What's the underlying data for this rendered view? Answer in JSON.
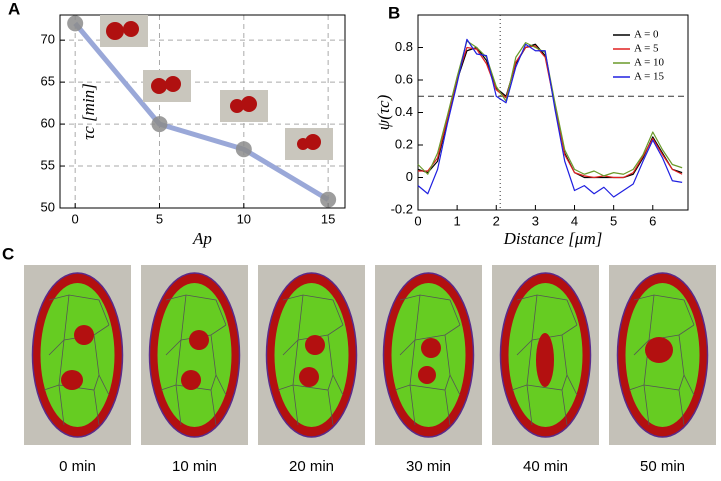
{
  "chart_data": [
    {
      "type": "line",
      "panel": "A",
      "xlabel": "Ap",
      "ylabel": "τc [min]",
      "x": [
        0,
        5,
        10,
        15
      ],
      "values": [
        72,
        60,
        57,
        51
      ],
      "color": "#9aa8d8",
      "marker_color": "#8c8c8c",
      "xlim": [
        -0.9,
        16
      ],
      "ylim": [
        50,
        73
      ],
      "xticks": [
        0,
        5,
        10,
        15
      ],
      "yticks": [
        50,
        55,
        60,
        65,
        70
      ],
      "grid": true
    },
    {
      "type": "line",
      "panel": "B",
      "xlabel": "Distance [μm]",
      "ylabel": "ψ(τc)",
      "x": [
        0,
        0.25,
        0.5,
        0.75,
        1,
        1.25,
        1.5,
        1.75,
        2,
        2.25,
        2.5,
        2.75,
        3,
        3.25,
        3.5,
        3.75,
        4,
        4.25,
        4.5,
        4.75,
        5,
        5.25,
        5.5,
        5.75,
        6,
        6.25,
        6.5,
        6.75
      ],
      "series": [
        {
          "name": "A = 0",
          "color": "#000000",
          "values": [
            0.05,
            0.03,
            0.1,
            0.35,
            0.6,
            0.78,
            0.8,
            0.72,
            0.55,
            0.5,
            0.7,
            0.8,
            0.82,
            0.75,
            0.45,
            0.15,
            0.03,
            0,
            0,
            0,
            0,
            0,
            0.02,
            0.12,
            0.25,
            0.15,
            0.05,
            0.03
          ]
        },
        {
          "name": "A = 5",
          "color": "#e02020",
          "values": [
            0.04,
            0.04,
            0.12,
            0.36,
            0.61,
            0.8,
            0.79,
            0.7,
            0.54,
            0.49,
            0.71,
            0.8,
            0.81,
            0.74,
            0.44,
            0.14,
            0.03,
            0.01,
            0,
            0.01,
            0,
            0,
            0.03,
            0.13,
            0.24,
            0.14,
            0.05,
            0.02
          ]
        },
        {
          "name": "A = 10",
          "color": "#6a9a2a",
          "values": [
            0.08,
            0.02,
            0.15,
            0.38,
            0.62,
            0.84,
            0.8,
            0.74,
            0.56,
            0.47,
            0.74,
            0.83,
            0.8,
            0.77,
            0.46,
            0.17,
            0.05,
            0.02,
            0.04,
            0.01,
            0.03,
            0.02,
            0.05,
            0.14,
            0.28,
            0.17,
            0.08,
            0.06
          ]
        },
        {
          "name": "A = 15",
          "color": "#2020e0",
          "values": [
            -0.05,
            -0.1,
            0.05,
            0.33,
            0.58,
            0.85,
            0.76,
            0.75,
            0.5,
            0.46,
            0.68,
            0.82,
            0.78,
            0.78,
            0.42,
            0.1,
            -0.08,
            -0.05,
            -0.1,
            -0.06,
            -0.12,
            -0.08,
            -0.04,
            0.1,
            0.23,
            0.12,
            -0.02,
            -0.03
          ]
        }
      ],
      "xlim": [
        0,
        6.9
      ],
      "ylim": [
        -0.2,
        1.0
      ],
      "xticks": [
        0,
        1,
        2,
        3,
        4,
        5,
        6
      ],
      "yticks": [
        -0.2,
        0,
        0.2,
        0.4,
        0.6,
        0.8
      ],
      "hline": 0.5,
      "vline": 2.1,
      "legend": "top-right"
    }
  ],
  "panel_c": {
    "panel": "C",
    "snapshots": [
      "0 min",
      "10 min",
      "20 min",
      "30 min",
      "40 min",
      "50 min"
    ]
  }
}
